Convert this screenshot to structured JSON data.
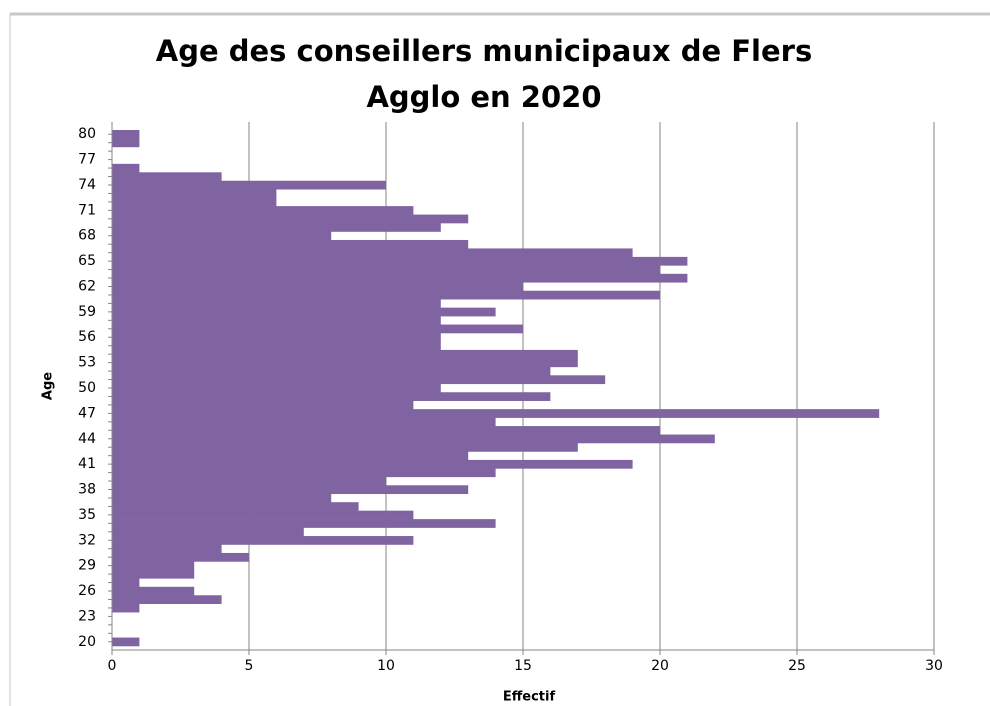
{
  "chart_data": {
    "type": "barh",
    "title": "Age des conseillers municipaux de Flers Agglo en 2020",
    "x_label": "Effectif",
    "y_label": "Age",
    "categories": [
      "20",
      null,
      null,
      "23",
      null,
      null,
      "26",
      null,
      null,
      "29",
      null,
      null,
      "32",
      null,
      null,
      "35",
      null,
      null,
      "38",
      null,
      null,
      "41",
      null,
      null,
      "44",
      null,
      null,
      "47",
      null,
      null,
      "50",
      null,
      null,
      "53",
      null,
      null,
      "56",
      null,
      null,
      "59",
      null,
      null,
      "62",
      null,
      null,
      "65",
      null,
      null,
      "68",
      null,
      null,
      "71",
      null,
      null,
      "74",
      null,
      null,
      "77",
      null,
      null,
      "80"
    ],
    "values": [
      1,
      0,
      0,
      0,
      1,
      4,
      3,
      1,
      3,
      3,
      5,
      4,
      11,
      7,
      14,
      11,
      9,
      8,
      13,
      10,
      14,
      19,
      13,
      17,
      22,
      20,
      14,
      28,
      11,
      16,
      12,
      18,
      16,
      17,
      17,
      12,
      12,
      15,
      12,
      14,
      12,
      20,
      15,
      21,
      20,
      21,
      19,
      13,
      8,
      12,
      13,
      11,
      6,
      6,
      10,
      4,
      1,
      0,
      0,
      1,
      1
    ],
    "color": "#8064a2",
    "xlim": [
      0,
      30
    ],
    "xticks": [
      0,
      5,
      10,
      15,
      20,
      25,
      30
    ],
    "grid": true
  }
}
